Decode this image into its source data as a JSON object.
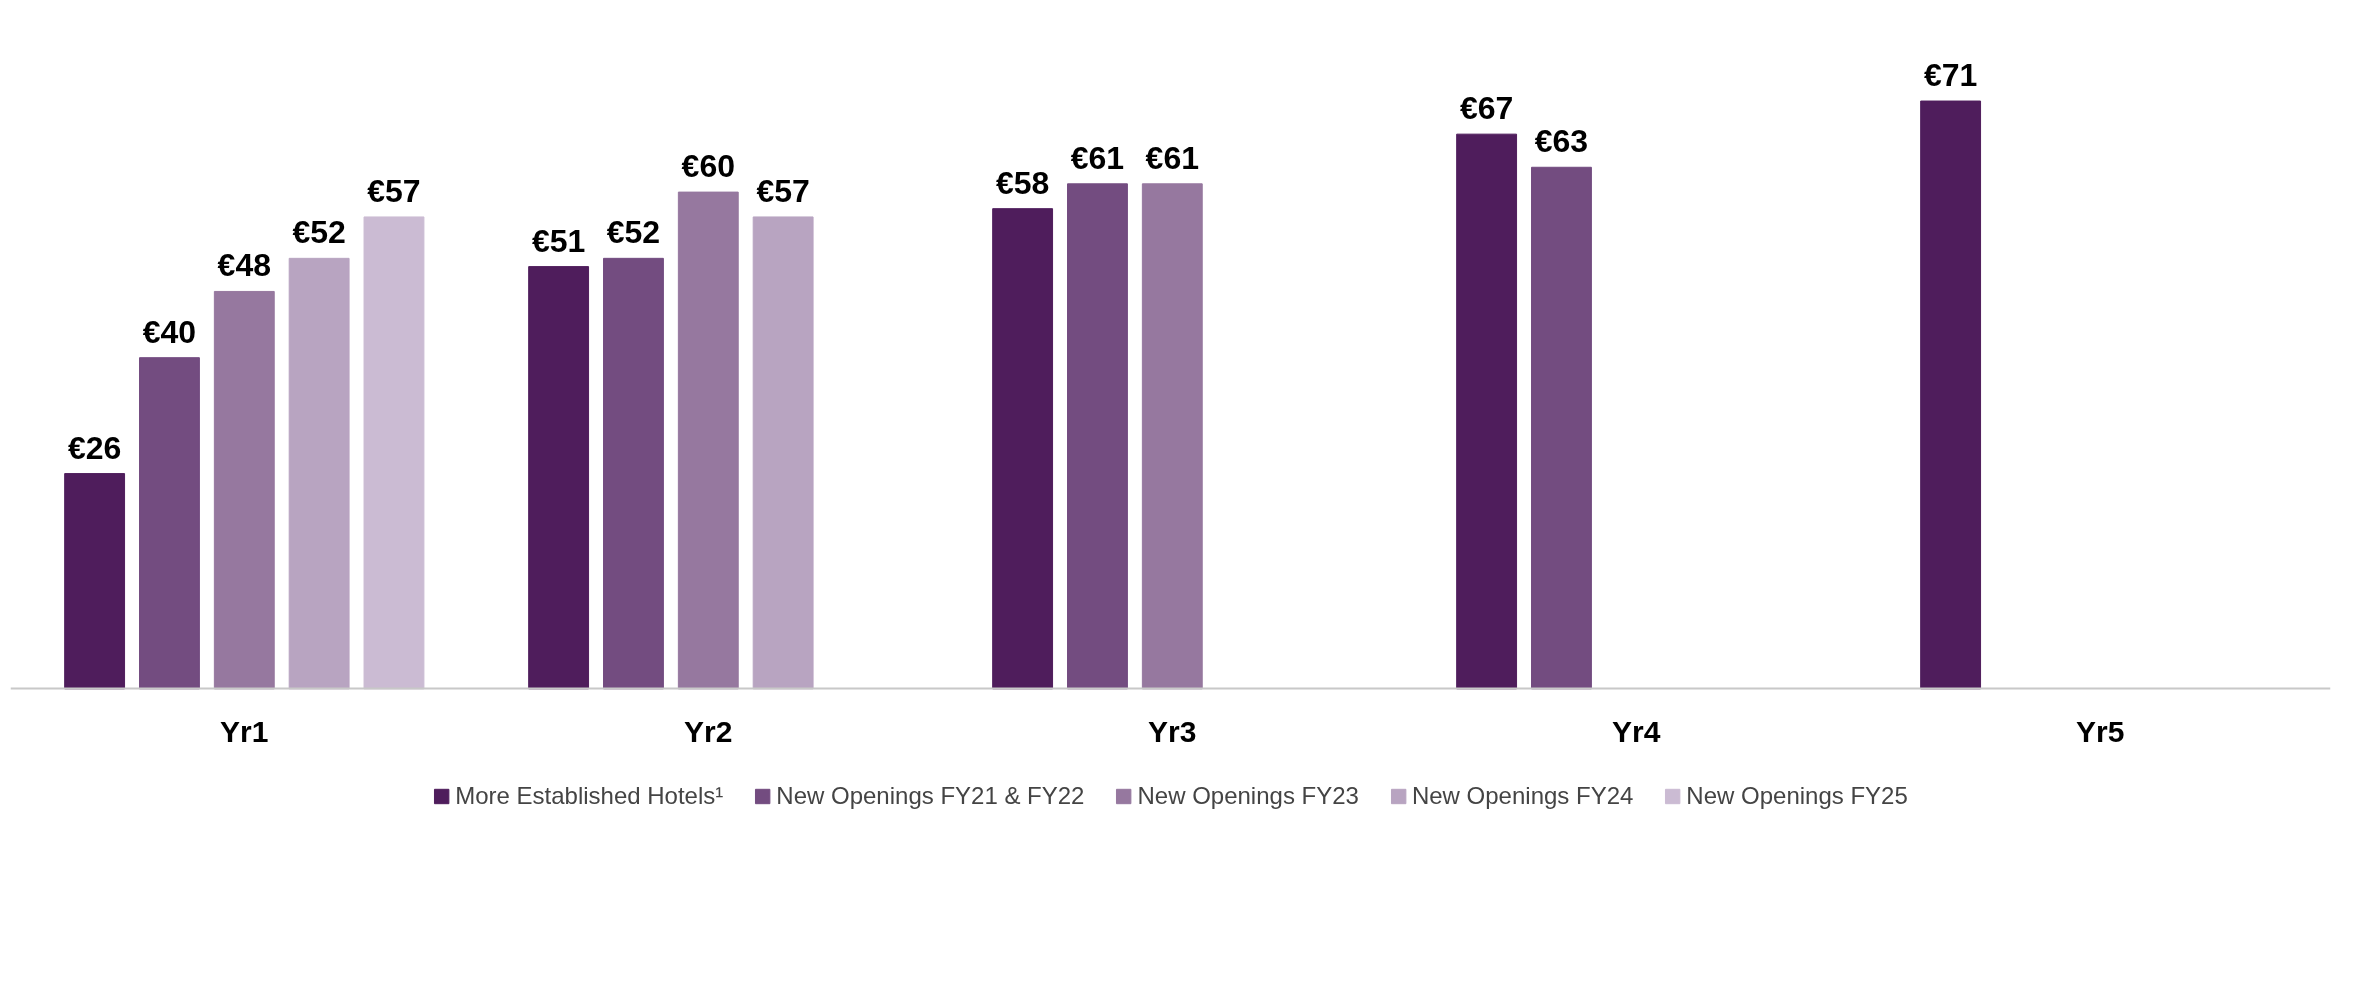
{
  "chart_data": {
    "type": "bar",
    "categories": [
      "Yr1",
      "Yr2",
      "Yr3",
      "Yr4",
      "Yr5"
    ],
    "series": [
      {
        "name": "More Established Hotels¹",
        "color": "#4f1d5c",
        "values": [
          26,
          51,
          58,
          67,
          71
        ],
        "value_labels": [
          "€26",
          "€51",
          "€58",
          "€67",
          "€71"
        ]
      },
      {
        "name": "New Openings FY21 & FY22",
        "color": "#734c80",
        "values": [
          40,
          52,
          61,
          63,
          null
        ],
        "value_labels": [
          "€40",
          "€52",
          "€61",
          "€63",
          null
        ]
      },
      {
        "name": "New Openings FY23",
        "color": "#96789f",
        "values": [
          48,
          60,
          61,
          null,
          null
        ],
        "value_labels": [
          "€48",
          "€60",
          "€61",
          null,
          null
        ]
      },
      {
        "name": "New Openings FY24",
        "color": "#b8a4c1",
        "values": [
          52,
          57,
          null,
          null,
          null
        ],
        "value_labels": [
          "€52",
          "€57",
          null,
          null,
          null
        ]
      },
      {
        "name": "New Openings FY25",
        "color": "#cbbbd3",
        "values": [
          57,
          null,
          null,
          null,
          null
        ],
        "value_labels": [
          "€57",
          null,
          null,
          null,
          null
        ]
      }
    ],
    "legend": "bottom",
    "grid": false
  }
}
